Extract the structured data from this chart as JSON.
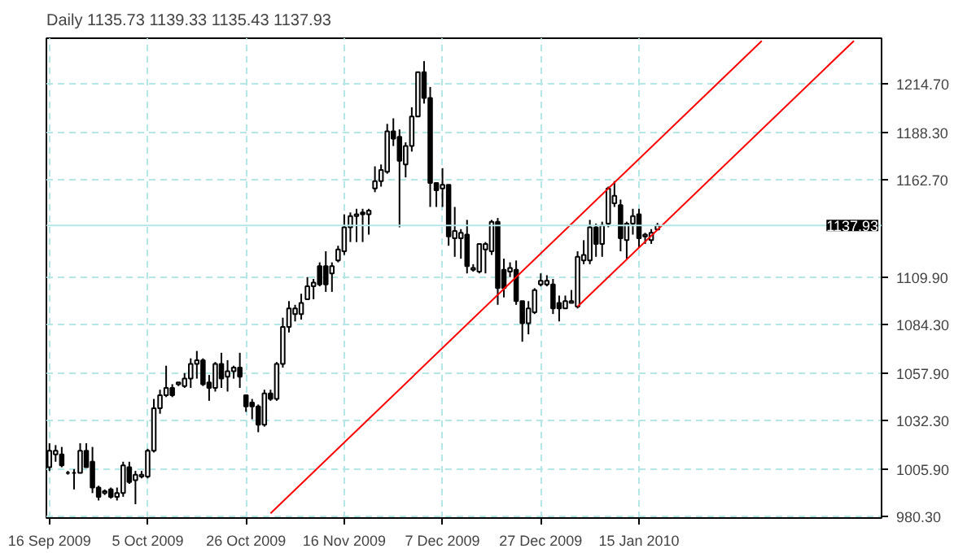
{
  "chart_data": {
    "type": "candlestick",
    "title": "Daily  1135.73 1139.33 1135.43 1137.93",
    "categories": [
      "16 Sep 2009",
      null,
      null,
      null,
      null,
      null,
      null,
      null,
      null,
      null,
      null,
      null,
      null,
      null,
      null,
      null,
      "5 Oct 2009",
      null,
      null,
      null,
      null,
      null,
      null,
      null,
      null,
      null,
      null,
      null,
      null,
      null,
      null,
      null,
      "26 Oct 2009",
      null,
      null,
      null,
      null,
      null,
      null,
      null,
      null,
      null,
      null,
      null,
      null,
      null,
      null,
      null,
      "16 Nov 2009",
      null,
      null,
      null,
      null,
      null,
      null,
      null,
      null,
      null,
      null,
      null,
      null,
      null,
      null,
      null,
      "7 Dec 2009",
      null,
      null,
      null,
      null,
      null,
      null,
      null,
      null,
      null,
      null,
      null,
      null,
      null,
      null,
      null,
      "27 Dec 2009",
      null,
      null,
      null,
      null,
      null,
      null,
      null,
      null,
      null,
      null,
      null,
      null,
      null,
      null,
      null,
      "15 Jan 2010",
      null,
      null,
      null,
      null,
      null,
      null,
      null,
      null,
      null,
      null,
      null,
      null,
      null,
      null,
      null,
      null,
      null,
      null,
      null,
      null,
      null,
      null,
      null,
      null,
      null,
      null,
      null,
      null,
      null,
      null,
      null,
      null,
      null,
      null,
      null,
      null,
      null,
      null,
      null
    ],
    "ohlc": [
      [
        1007,
        1020,
        1005,
        1016
      ],
      [
        1014,
        1019,
        1010,
        1016
      ],
      [
        1014,
        1018,
        1007,
        1008
      ],
      [
        1004,
        1005,
        1003,
        1004
      ],
      [
        1004,
        1006,
        995,
        1004
      ],
      [
        1004,
        1020,
        1004,
        1016
      ],
      [
        1016,
        1020,
        1007,
        1007
      ],
      [
        1010,
        1018,
        993,
        996
      ],
      [
        996,
        997,
        989,
        991
      ],
      [
        993,
        995,
        992,
        994
      ],
      [
        995,
        996,
        990,
        991
      ],
      [
        991,
        996,
        989,
        993
      ],
      [
        993,
        1010,
        991,
        1008
      ],
      [
        1007,
        1010,
        998,
        999
      ],
      [
        1000,
        1005,
        987,
        1003
      ],
      [
        1002,
        1005,
        1001,
        1003
      ],
      [
        1002,
        1017,
        1001,
        1016
      ],
      [
        1016,
        1044,
        1015,
        1039
      ],
      [
        1039,
        1049,
        1036,
        1046
      ],
      [
        1046,
        1062,
        1045,
        1050
      ],
      [
        1050,
        1052,
        1045,
        1046
      ],
      [
        1052,
        1053,
        1051,
        1053
      ],
      [
        1051,
        1058,
        1050,
        1055
      ],
      [
        1055,
        1066,
        1050,
        1063
      ],
      [
        1063,
        1070,
        1055,
        1065
      ],
      [
        1065,
        1066,
        1051,
        1052
      ],
      [
        1053,
        1057,
        1043,
        1050
      ],
      [
        1050,
        1064,
        1048,
        1063
      ],
      [
        1063,
        1069,
        1050,
        1055
      ],
      [
        1056,
        1065,
        1048,
        1059
      ],
      [
        1059,
        1062,
        1055,
        1061
      ],
      [
        1061,
        1069,
        1050,
        1056
      ],
      [
        1046,
        1046,
        1037,
        1040
      ],
      [
        1042,
        1044,
        1033,
        1040
      ],
      [
        1040,
        1041,
        1026,
        1030
      ],
      [
        1030,
        1049,
        1029,
        1047
      ],
      [
        1047,
        1049,
        1043,
        1044
      ],
      [
        1044,
        1064,
        1043,
        1063
      ],
      [
        1063,
        1088,
        1061,
        1083
      ],
      [
        1083,
        1097,
        1080,
        1093
      ],
      [
        1090,
        1095,
        1086,
        1093
      ],
      [
        1090,
        1101,
        1087,
        1096
      ],
      [
        1098,
        1110,
        1098,
        1105
      ],
      [
        1105,
        1109,
        1098,
        1107
      ],
      [
        1116,
        1118,
        1105,
        1106
      ],
      [
        1116,
        1124,
        1102,
        1106
      ],
      [
        1112,
        1118,
        1102,
        1116
      ],
      [
        1119,
        1127,
        1118,
        1125
      ],
      [
        1124,
        1144,
        1122,
        1137
      ],
      [
        1137,
        1145,
        1129,
        1143
      ],
      [
        1143,
        1147,
        1129,
        1144
      ],
      [
        1145,
        1147,
        1129,
        1144
      ],
      [
        1144,
        1147,
        1133,
        1146
      ],
      [
        1158,
        1170,
        1156,
        1162
      ],
      [
        1162,
        1171,
        1159,
        1168
      ],
      [
        1167,
        1193,
        1166,
        1189
      ],
      [
        1189,
        1196,
        1181,
        1185
      ],
      [
        1186,
        1190,
        1137,
        1173
      ],
      [
        1171,
        1183,
        1164,
        1181
      ],
      [
        1181,
        1202,
        1178,
        1197
      ],
      [
        1197,
        1221,
        1197,
        1221
      ],
      [
        1221,
        1227,
        1204,
        1207
      ],
      [
        1207,
        1213,
        1148,
        1161
      ],
      [
        1161,
        1161,
        1148,
        1157
      ],
      [
        1158,
        1169,
        1148,
        1160
      ],
      [
        1160,
        1160,
        1127,
        1132
      ],
      [
        1131,
        1148,
        1121,
        1135
      ],
      [
        1131,
        1136,
        1120,
        1134
      ],
      [
        1133,
        1141,
        1112,
        1116
      ],
      [
        1114,
        1117,
        1113,
        1115
      ],
      [
        1113,
        1128,
        1112,
        1128
      ],
      [
        1125,
        1129,
        1112,
        1128
      ],
      [
        1124,
        1141,
        1122,
        1140
      ],
      [
        1140,
        1142,
        1095,
        1104
      ],
      [
        1114,
        1120,
        1099,
        1104
      ],
      [
        1113,
        1118,
        1110,
        1115
      ],
      [
        1114,
        1119,
        1095,
        1097
      ],
      [
        1097,
        1097,
        1075,
        1085
      ],
      [
        1085,
        1097,
        1079,
        1093
      ],
      [
        1091,
        1104,
        1090,
        1103
      ],
      [
        1106,
        1112,
        1105,
        1108
      ],
      [
        1106,
        1111,
        1105,
        1108
      ],
      [
        1106,
        1109,
        1090,
        1093
      ],
      [
        1096,
        1100,
        1086,
        1093
      ],
      [
        1093,
        1100,
        1093,
        1097
      ],
      [
        1096,
        1103,
        1096,
        1097
      ],
      [
        1094,
        1124,
        1093,
        1121
      ],
      [
        1119,
        1130,
        1117,
        1122
      ],
      [
        1119,
        1141,
        1117,
        1137
      ],
      [
        1137,
        1139,
        1121,
        1128
      ],
      [
        1128,
        1140,
        1121,
        1138
      ],
      [
        1139,
        1159,
        1137,
        1158
      ],
      [
        1150,
        1162,
        1148,
        1154
      ],
      [
        1149,
        1152,
        1124,
        1131
      ],
      [
        1130,
        1140,
        1120,
        1139
      ],
      [
        1139,
        1147,
        1133,
        1143
      ],
      [
        1144,
        1147,
        1126,
        1131
      ],
      [
        1132,
        1134,
        1128,
        1133
      ],
      [
        1130,
        1136,
        1128,
        1134
      ],
      [
        1135.73,
        1139.33,
        1135.43,
        1137.93
      ],
      null,
      null,
      null,
      null,
      null,
      null,
      null,
      null,
      null,
      null,
      null,
      null,
      null,
      null,
      null,
      null,
      null,
      null,
      null,
      null,
      null,
      null,
      null,
      null,
      null,
      null,
      null,
      null,
      null,
      null,
      null,
      null,
      null,
      null,
      null,
      null
    ],
    "series": [
      {
        "type": "line",
        "color": "#ff0000",
        "values": [
          null,
          null,
          null,
          null,
          null,
          null,
          null,
          null,
          null,
          null,
          null,
          null,
          null,
          null,
          null,
          null,
          null,
          null,
          null,
          null,
          null,
          null,
          null,
          null,
          null,
          null,
          null,
          null,
          null,
          null,
          null,
          null,
          null,
          null,
          null,
          null,
          982,
          null,
          null,
          null,
          null,
          null,
          null,
          null,
          null,
          null,
          null,
          null,
          null,
          null,
          null,
          null,
          null,
          null,
          null,
          null,
          null,
          null,
          null,
          null,
          null,
          null,
          null,
          null,
          null,
          null,
          null,
          null,
          null,
          null,
          null,
          null,
          null,
          null,
          null,
          null,
          null,
          null,
          null,
          null,
          null,
          null,
          null,
          null,
          null,
          null,
          null,
          null,
          null,
          null,
          null,
          null,
          null,
          null,
          null,
          null,
          null,
          null,
          null,
          null,
          null,
          null,
          null,
          null,
          null,
          null,
          null,
          null,
          null,
          null,
          null,
          null,
          null,
          null,
          null,
          null,
          1238,
          null,
          null,
          null,
          null,
          null,
          null,
          null,
          null,
          null,
          null,
          null,
          null,
          null,
          null,
          null,
          null,
          null,
          null,
          null
        ]
      },
      {
        "type": "line",
        "color": "#ff0000",
        "values": [
          null,
          null,
          null,
          null,
          null,
          null,
          null,
          null,
          null,
          null,
          null,
          null,
          null,
          null,
          null,
          null,
          null,
          null,
          null,
          null,
          null,
          null,
          null,
          null,
          null,
          null,
          null,
          null,
          null,
          null,
          null,
          null,
          null,
          null,
          null,
          null,
          null,
          null,
          null,
          null,
          null,
          null,
          null,
          null,
          null,
          null,
          null,
          null,
          null,
          null,
          null,
          null,
          null,
          null,
          null,
          null,
          null,
          null,
          null,
          null,
          null,
          null,
          null,
          null,
          null,
          null,
          null,
          null,
          null,
          null,
          null,
          null,
          null,
          null,
          null,
          null,
          null,
          null,
          null,
          null,
          null,
          null,
          null,
          null,
          null,
          null,
          1094,
          null,
          null,
          null,
          null,
          null,
          null,
          null,
          null,
          null,
          null,
          null,
          null,
          null,
          null,
          null,
          null,
          null,
          null,
          null,
          null,
          null,
          null,
          null,
          null,
          null,
          null,
          null,
          null,
          null,
          null,
          null,
          null,
          null,
          null,
          null,
          null,
          null,
          null,
          null,
          null,
          null,
          null,
          null,
          null,
          1238,
          null,
          null,
          null,
          null
        ]
      }
    ],
    "ylim": [
      979.5,
      1239.4
    ],
    "yticks": [
      {
        "value": 980.3,
        "label": "980.30"
      },
      {
        "value": 1005.9,
        "label": "1005.90"
      },
      {
        "value": 1032.3,
        "label": "1032.30"
      },
      {
        "value": 1057.9,
        "label": "1057.90"
      },
      {
        "value": 1084.3,
        "label": "1084.30"
      },
      {
        "value": 1109.9,
        "label": "1109.90"
      },
      {
        "value": 1162.7,
        "label": "1162.70"
      },
      {
        "value": 1188.3,
        "label": "1188.30"
      },
      {
        "value": 1214.7,
        "label": "1214.70"
      }
    ],
    "ref_lines": [
      {
        "axis": "y",
        "value": 1137.93,
        "label": "1137.93",
        "color": "#b4e6e6",
        "line_style": "solid"
      }
    ],
    "grid": true
  }
}
